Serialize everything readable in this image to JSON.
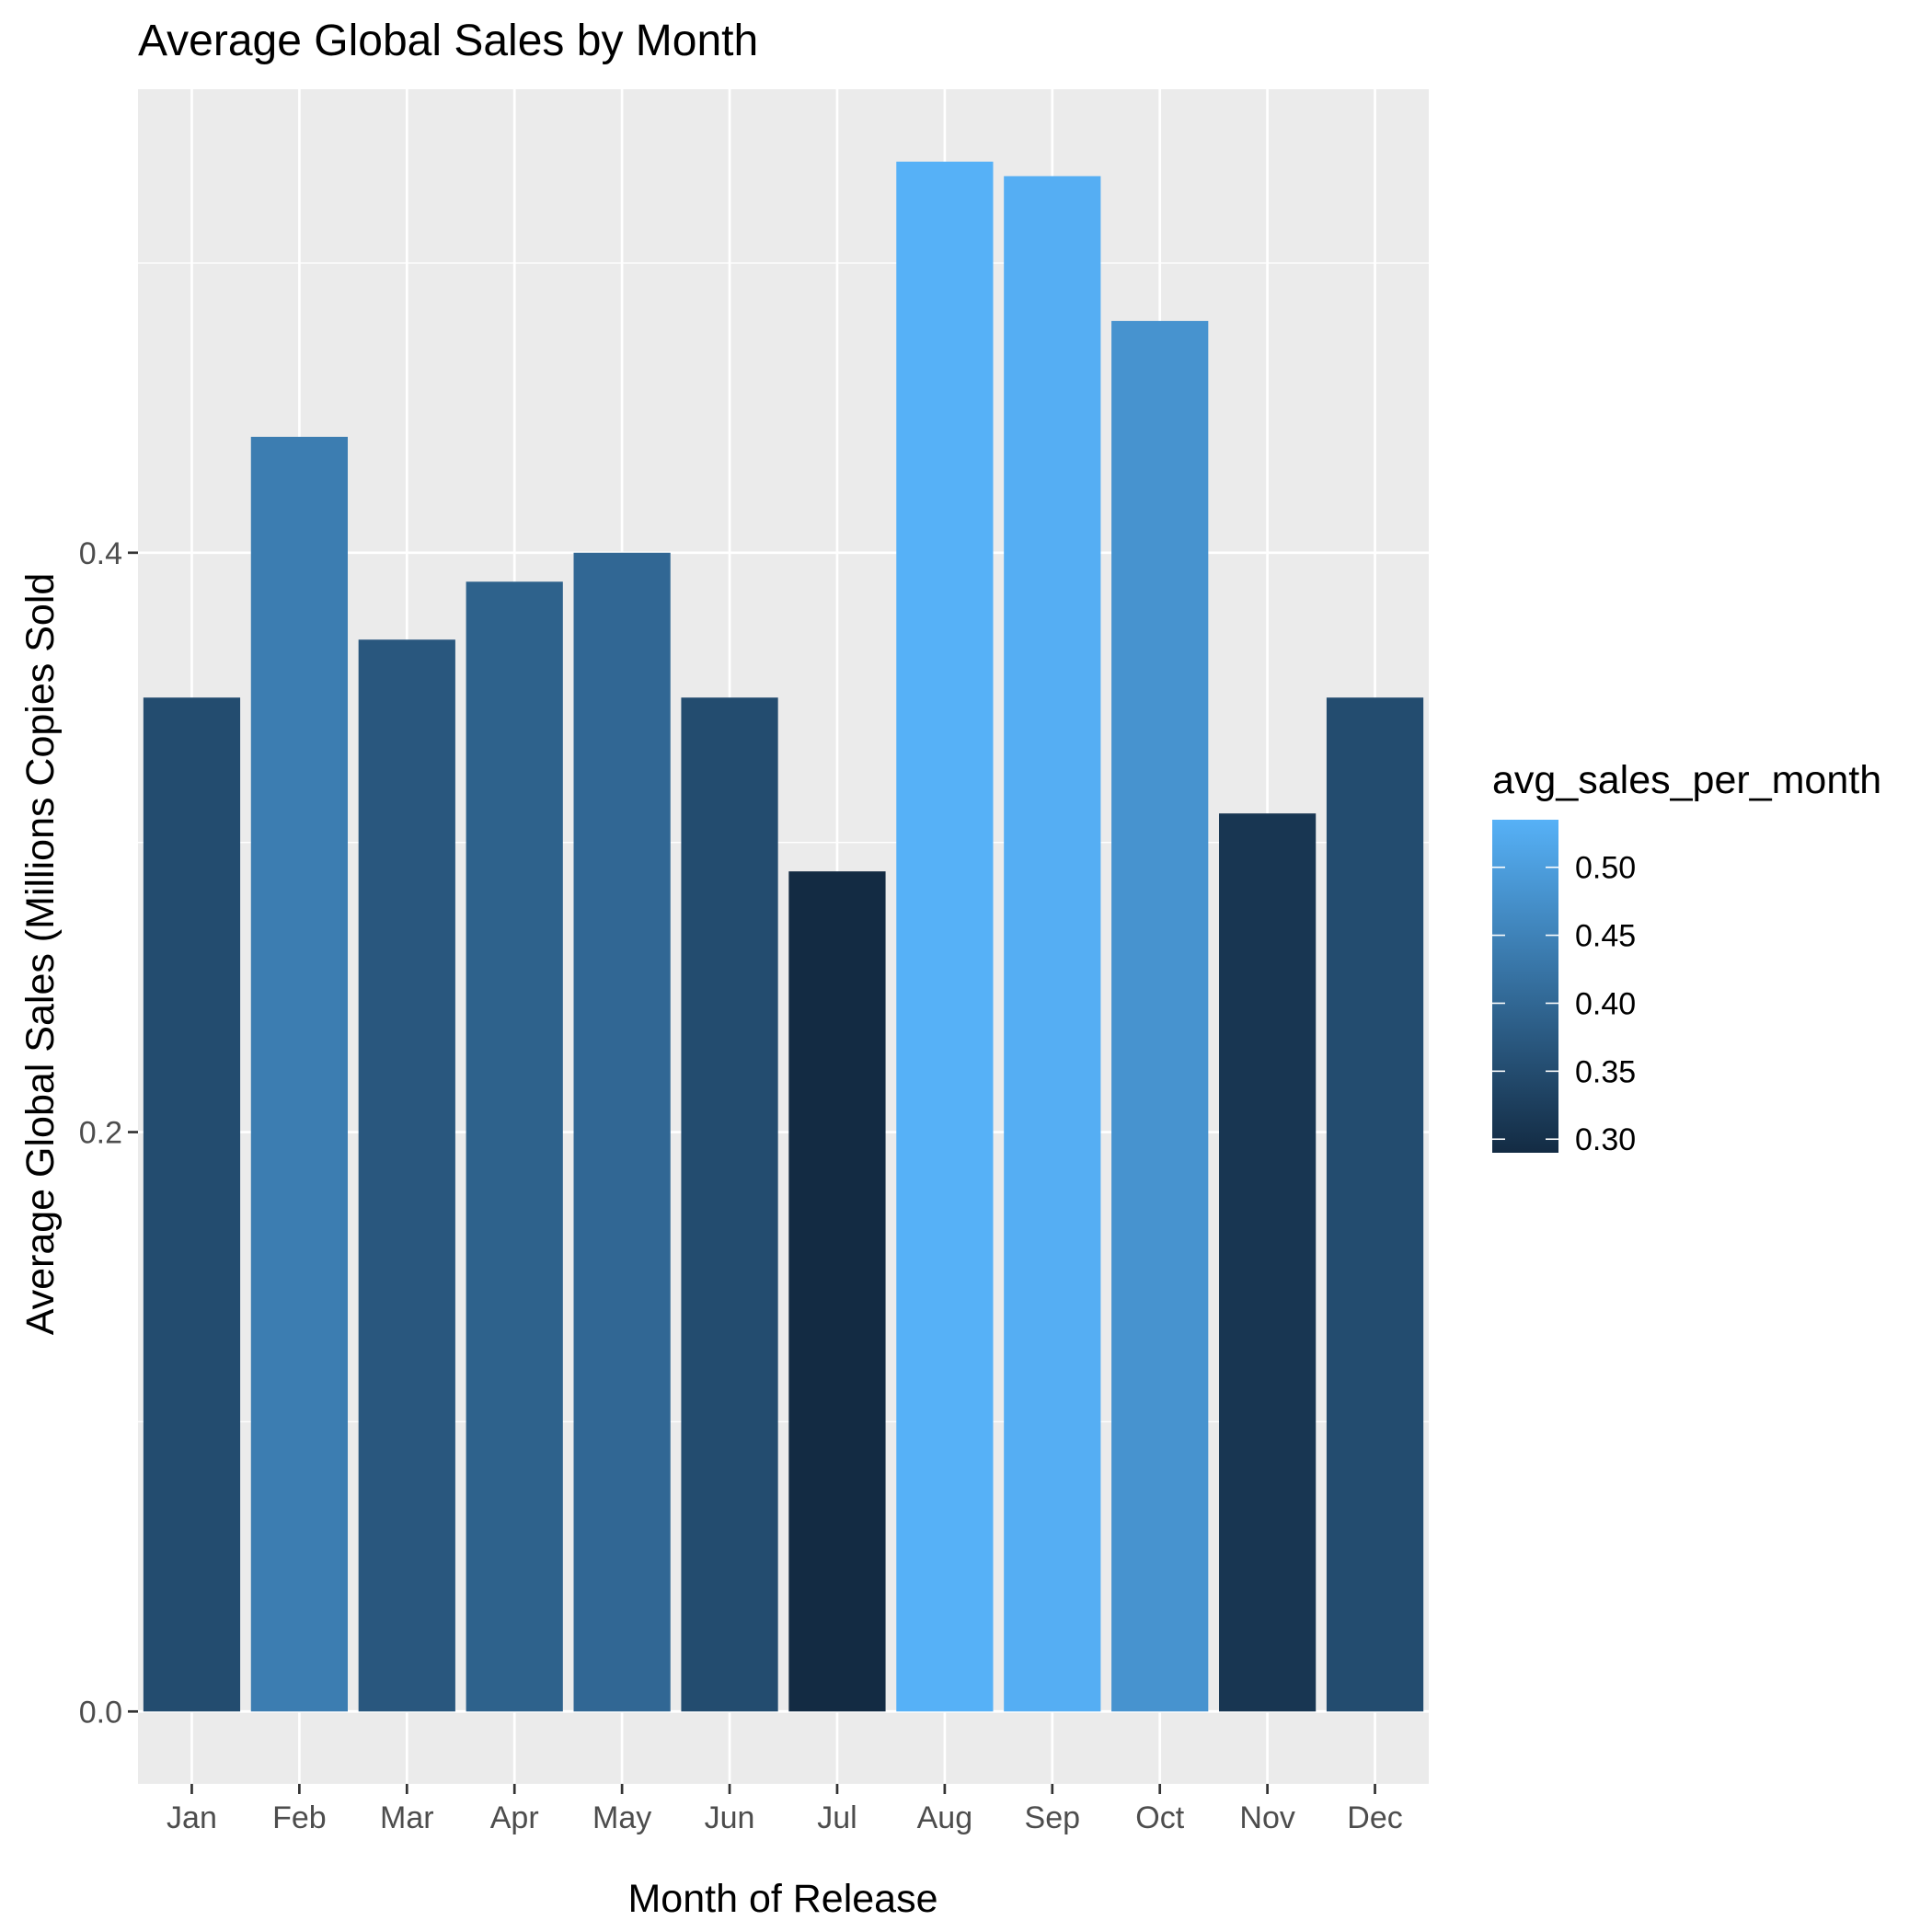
{
  "chart_data": {
    "type": "bar",
    "title": "Average Global Sales by Month",
    "xlabel": "Month of Release",
    "ylabel": "Average Global Sales (Millions Copies Sold",
    "categories": [
      "Jan",
      "Feb",
      "Mar",
      "Apr",
      "May",
      "Jun",
      "Jul",
      "Aug",
      "Sep",
      "Oct",
      "Nov",
      "Dec"
    ],
    "values": [
      0.35,
      0.44,
      0.37,
      0.39,
      0.4,
      0.35,
      0.29,
      0.535,
      0.53,
      0.48,
      0.31,
      0.35
    ],
    "ylim": [
      -0.025,
      0.56
    ],
    "yticks": [
      0.0,
      0.2,
      0.4
    ],
    "ytick_labels": [
      "0.0",
      "0.2",
      "0.4"
    ],
    "grid": true,
    "legend": {
      "title": "avg_sales_per_month",
      "placement": "right",
      "type": "colorbar",
      "range": [
        0.29,
        0.535
      ],
      "breaks": [
        0.3,
        0.35,
        0.4,
        0.45,
        0.5
      ],
      "break_labels": [
        "0.30",
        "0.35",
        "0.40",
        "0.45",
        "0.50"
      ],
      "low_color": "#132B43",
      "high_color": "#56B1F7"
    },
    "colors": {
      "panel_background": "#EBEBEB",
      "grid": "#FFFFFF",
      "tick_text": "#4D4D4D"
    }
  }
}
